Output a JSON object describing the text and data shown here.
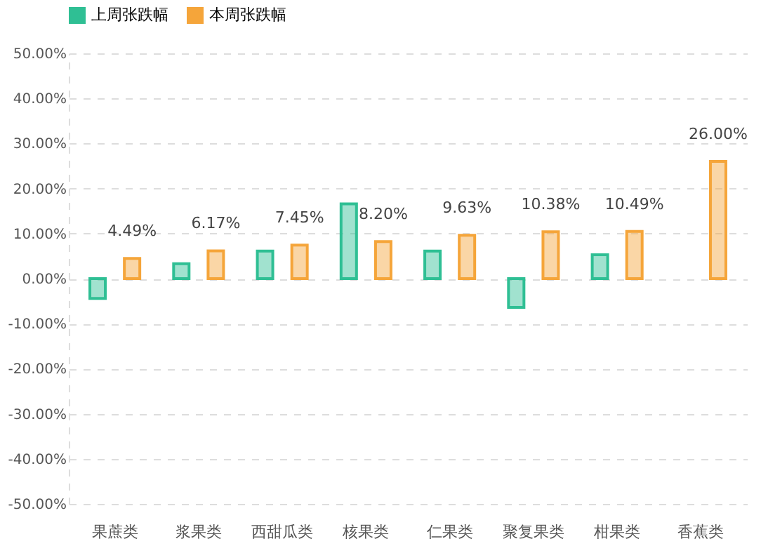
{
  "chart_data": {
    "type": "bar",
    "categories": [
      "果蔗类",
      "浆果类",
      "西甜瓜类",
      "核果类",
      "仁果类",
      "聚复果类",
      "柑果类",
      "香蕉类"
    ],
    "series": [
      {
        "name": "上周张跌幅",
        "color": "#2fbf94",
        "values": [
          -4.4,
          3.3,
          6.1,
          16.6,
          6.1,
          -6.4,
          5.3,
          null
        ]
      },
      {
        "name": "本周张跌幅",
        "color": "#f5a53a",
        "values": [
          4.49,
          6.17,
          7.45,
          8.2,
          9.63,
          10.38,
          10.49,
          26.0
        ],
        "value_labels": [
          "4.49%",
          "6.17%",
          "7.45%",
          "8.20%",
          "9.63%",
          "10.38%",
          "10.49%",
          "26.00%"
        ]
      }
    ],
    "ylim": [
      -50,
      50
    ],
    "yticks": [
      {
        "value": -50,
        "label": "-50.00%"
      },
      {
        "value": -40,
        "label": "-40.00%"
      },
      {
        "value": -30,
        "label": "-30.00%"
      },
      {
        "value": -20,
        "label": "-20.00%"
      },
      {
        "value": -10,
        "label": "-10.00%"
      },
      {
        "value": 0,
        "label": "0.00%"
      },
      {
        "value": 10,
        "label": "10.00%"
      },
      {
        "value": 20,
        "label": "20.00%"
      },
      {
        "value": 30,
        "label": "30.00%"
      },
      {
        "value": 40,
        "label": "40.00%"
      },
      {
        "value": 50,
        "label": "50.00%"
      }
    ],
    "grid": "y",
    "legend": "top"
  }
}
